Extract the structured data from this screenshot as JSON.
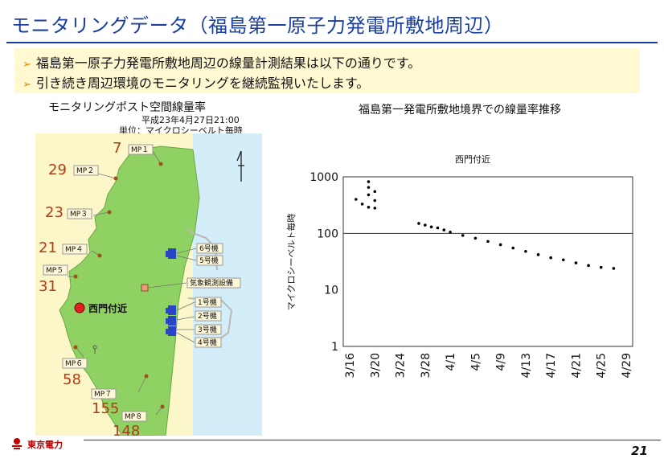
{
  "page": {
    "title": "モニタリングデータ（福島第一原子力発電所敷地周辺）",
    "page_number": "21",
    "company": "東京電力"
  },
  "bullets": [
    "福島第一原子力発電所敷地周辺の線量計測結果は以下の通りです。",
    "引き続き周辺環境のモニタリングを継続監視いたします。"
  ],
  "map": {
    "title": "モニタリングポスト空間線量率",
    "date": "平成23年4月27日21:00",
    "unit": "単位：マイクロシーベルト毎時",
    "posts": [
      {
        "label": "MP１",
        "value": "7"
      },
      {
        "label": "MP２",
        "value": "29"
      },
      {
        "label": "MP３",
        "value": "23"
      },
      {
        "label": "MP４",
        "value": "21"
      },
      {
        "label": "MP５",
        "value": "31"
      },
      {
        "label": "MP６",
        "value": "58"
      },
      {
        "label": "MP７",
        "value": "155"
      },
      {
        "label": "MP８",
        "value": "148"
      }
    ],
    "units": [
      "6号機",
      "5号機",
      "1号機",
      "2号機",
      "3号機",
      "4号機"
    ],
    "weather": "気象観測設備",
    "seimon": "西門付近",
    "colors": {
      "land": "#8fd162",
      "sea": "#d4eef9",
      "outside": "#fbf7c8",
      "value": "#b43b1a",
      "seimon": "#e02020"
    }
  },
  "chart_data": {
    "type": "scatter",
    "title": "福島第一発電所敷地境界での線量率推移",
    "subtitle": "西門付近",
    "xlabel": "",
    "ylabel": "マイクロシーベルト毎時",
    "yscale": "log",
    "ylim": [
      1,
      1000
    ],
    "yticks": [
      "1",
      "10",
      "100",
      "1000"
    ],
    "xlim": [
      "3/16",
      "4/29"
    ],
    "xticks": [
      "3/16",
      "3/20",
      "3/24",
      "3/28",
      "4/1",
      "4/5",
      "4/9",
      "4/13",
      "4/17",
      "4/21",
      "4/25",
      "4/29"
    ],
    "grid": "horizontal",
    "series": [
      {
        "x": [
          "3/17",
          "3/18",
          "3/19",
          "3/19",
          "3/19",
          "3/19",
          "3/20",
          "3/20",
          "3/20",
          "3/27",
          "3/28",
          "3/29",
          "3/30",
          "3/31",
          "4/1",
          "4/3",
          "4/5",
          "4/7",
          "4/9",
          "4/11",
          "4/13",
          "4/15",
          "4/17",
          "4/19",
          "4/21",
          "4/23",
          "4/25",
          "4/27"
        ],
        "y": [
          400,
          330,
          290,
          480,
          650,
          820,
          550,
          380,
          280,
          150,
          140,
          130,
          125,
          115,
          105,
          92,
          82,
          72,
          63,
          55,
          48,
          42,
          37,
          34,
          30,
          27,
          25,
          24
        ]
      }
    ]
  }
}
